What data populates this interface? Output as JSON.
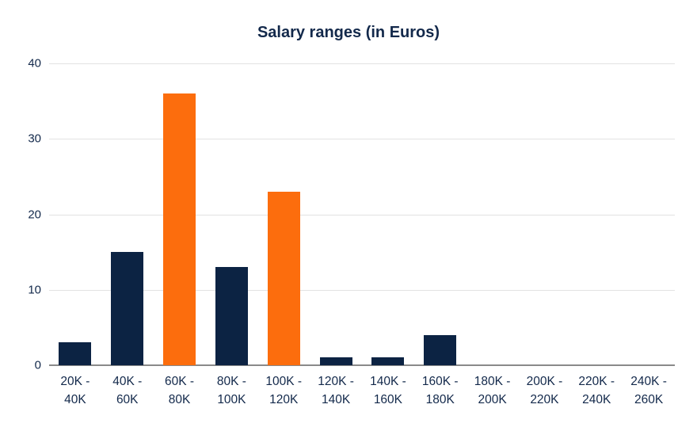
{
  "chart_data": {
    "type": "bar",
    "title": "Salary ranges (in Euros)",
    "categories": [
      "20K -\n40K",
      "40K -\n60K",
      "60K -\n80K",
      "80K -\n100K",
      "100K -\n120K",
      "120K -\n140K",
      "140K -\n160K",
      "160K -\n180K",
      "180K -\n200K",
      "200K -\n220K",
      "220K -\n240K",
      "240K -\n260K"
    ],
    "values": [
      3,
      15,
      36,
      13,
      23,
      1,
      1,
      4,
      0,
      0,
      0,
      0
    ],
    "bar_colors": [
      "navy",
      "navy",
      "orange",
      "navy",
      "orange",
      "navy",
      "navy",
      "navy",
      "navy",
      "navy",
      "navy",
      "navy"
    ],
    "colors": {
      "navy": "#0c2343",
      "orange": "#fc6d0d",
      "grid": "#e2e2e2",
      "axis": "#8a8a8a",
      "text": "#13294b"
    },
    "xlabel": "",
    "ylabel": "",
    "ylim": [
      0,
      40
    ],
    "yticks": [
      0,
      10,
      20,
      30,
      40
    ],
    "grid": true,
    "legend": "none"
  }
}
